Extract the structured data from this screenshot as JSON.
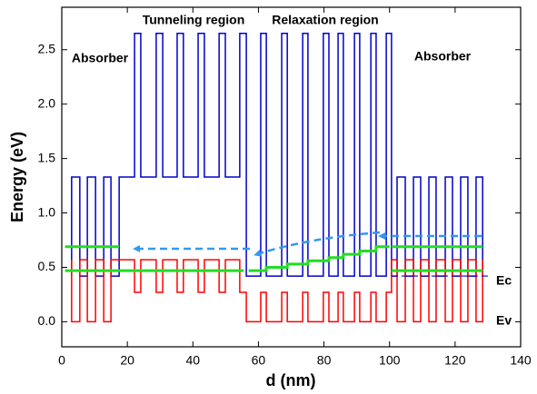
{
  "chart_data": {
    "type": "line",
    "xlabel": "d (nm)",
    "ylabel": "Energy (eV)",
    "xlim": [
      0,
      140
    ],
    "xticks": [
      0,
      20,
      40,
      60,
      80,
      100,
      120,
      140
    ],
    "ylim": [
      -0.23,
      2.89
    ],
    "yticks": [
      {
        "value": 0,
        "label": "0.0"
      },
      0.5,
      {
        "value": 1,
        "label": "1.0"
      },
      1.5,
      {
        "value": 2,
        "label": "2.0"
      },
      2.5
    ],
    "annotations": [
      "Tunneling region",
      "Relaxation region",
      "Absorber",
      "Absorber"
    ],
    "series": [
      {
        "name": "Ec",
        "color": "#0000cc",
        "linewidth": 1.5,
        "x": [
          3,
          3,
          5.5,
          5.5,
          7.8,
          7.8,
          10.3,
          10.3,
          12.8,
          12.8,
          15,
          15,
          17.5,
          17.5,
          22.2,
          22.2,
          24.1,
          24.1,
          28.8,
          28.8,
          30.8,
          30.8,
          35.2,
          35.2,
          37.1,
          37.1,
          41.6,
          41.6,
          43.5,
          43.5,
          48,
          48,
          49.9,
          49.9,
          54.3,
          54.3,
          56.3,
          56.3,
          60.7,
          60.7,
          62.4,
          62.4,
          67.1,
          67.1,
          68.8,
          68.8,
          73.5,
          73.5,
          75.1,
          75.1,
          79.8,
          79.8,
          81.5,
          81.5,
          84.3,
          84.3,
          85.9,
          85.9,
          89.3,
          89.3,
          90.9,
          90.9,
          94.3,
          94.3,
          95.9,
          95.9,
          99,
          99,
          100.6,
          100.6,
          102.3,
          102.3,
          104.8,
          104.8,
          107.3,
          107.3,
          109.5,
          109.5,
          112,
          112,
          114.2,
          114.2,
          117,
          117,
          119.2,
          119.2,
          121.7,
          121.7,
          123.9,
          123.9,
          126.4,
          126.4,
          128.4,
          128.4
        ],
        "values": [
          0.42,
          1.33,
          1.33,
          0.42,
          0.42,
          1.33,
          1.33,
          0.42,
          0.42,
          1.33,
          1.33,
          0.42,
          0.42,
          1.33,
          1.33,
          2.65,
          2.65,
          1.33,
          1.33,
          2.65,
          2.65,
          1.33,
          1.33,
          2.65,
          2.65,
          1.33,
          1.33,
          2.65,
          2.65,
          1.33,
          1.33,
          2.65,
          2.65,
          1.33,
          1.33,
          2.65,
          2.65,
          0.42,
          0.42,
          2.65,
          2.65,
          0.42,
          0.42,
          2.65,
          2.65,
          0.42,
          0.42,
          2.65,
          2.65,
          0.42,
          0.42,
          2.65,
          2.65,
          0.42,
          0.42,
          2.65,
          2.65,
          0.42,
          0.42,
          2.65,
          2.65,
          0.42,
          0.42,
          2.65,
          2.65,
          0.42,
          0.42,
          2.65,
          2.65,
          0.42,
          0.42,
          1.33,
          1.33,
          0.42,
          0.42,
          1.33,
          1.33,
          0.42,
          0.42,
          1.33,
          1.33,
          0.42,
          0.42,
          1.33,
          1.33,
          0.42,
          0.42,
          1.33,
          1.33,
          0.42,
          0.42,
          1.33,
          1.33,
          0.42
        ]
      },
      {
        "name": "Ev",
        "color": "#ff0000",
        "linewidth": 1.5,
        "x": [
          3,
          3,
          5.5,
          5.5,
          7.8,
          7.8,
          10.3,
          10.3,
          12.8,
          12.8,
          15,
          15,
          17.5,
          17.5,
          22.2,
          22.2,
          24.1,
          24.1,
          28.8,
          28.8,
          30.8,
          30.8,
          35.2,
          35.2,
          37.1,
          37.1,
          41.6,
          41.6,
          43.5,
          43.5,
          48,
          48,
          49.9,
          49.9,
          54.3,
          54.3,
          56.3,
          56.3,
          60.7,
          60.7,
          62.4,
          62.4,
          67.1,
          67.1,
          68.8,
          68.8,
          73.5,
          73.5,
          75.1,
          75.1,
          79.8,
          79.8,
          81.5,
          81.5,
          84.3,
          84.3,
          85.9,
          85.9,
          89.3,
          89.3,
          90.9,
          90.9,
          94.3,
          94.3,
          95.9,
          95.9,
          99,
          99,
          100.6,
          100.6,
          102.3,
          102.3,
          104.8,
          104.8,
          107.3,
          107.3,
          109.5,
          109.5,
          112,
          112,
          114.2,
          114.2,
          117,
          117,
          119.2,
          119.2,
          121.7,
          121.7,
          123.9,
          123.9,
          126.4,
          126.4,
          128.4,
          128.4
        ],
        "values": [
          0.57,
          0,
          0,
          0.57,
          0.57,
          0,
          0,
          0.57,
          0.57,
          0,
          0,
          0.57,
          0.57,
          0.57,
          0.57,
          0.27,
          0.27,
          0.57,
          0.57,
          0.27,
          0.27,
          0.57,
          0.57,
          0.27,
          0.27,
          0.57,
          0.57,
          0.27,
          0.27,
          0.57,
          0.57,
          0.27,
          0.27,
          0.57,
          0.57,
          0.27,
          0.27,
          0,
          0,
          0.27,
          0.27,
          0,
          0,
          0.27,
          0.27,
          0,
          0,
          0.27,
          0.27,
          0,
          0,
          0.27,
          0.27,
          0,
          0,
          0.27,
          0.27,
          0,
          0,
          0.27,
          0.27,
          0,
          0,
          0.27,
          0.27,
          0,
          0,
          0.27,
          0.27,
          0.57,
          0.57,
          0,
          0,
          0.57,
          0.57,
          0,
          0,
          0.57,
          0.57,
          0,
          0,
          0.57,
          0.57,
          0,
          0,
          0.57,
          0.57,
          0,
          0,
          0.57,
          0.57,
          0,
          0,
          0.57
        ]
      },
      {
        "color": "#22dd22",
        "linewidth": 3,
        "x": [
          1,
          17.5,
          null,
          1,
          55.5,
          null,
          57,
          62.4,
          62.4,
          68.8,
          68.8,
          75.1,
          75.1,
          81.5,
          81.5,
          85.9,
          85.9,
          90.9,
          90.9,
          95.9,
          95.9,
          100,
          null,
          100.6,
          128.4,
          null,
          100.6,
          128.4
        ],
        "values": [
          0.69,
          0.69,
          null,
          0.47,
          0.47,
          null,
          0.47,
          0.47,
          0.5,
          0.5,
          0.53,
          0.53,
          0.56,
          0.56,
          0.59,
          0.59,
          0.62,
          0.62,
          0.65,
          0.65,
          0.69,
          0.69,
          null,
          0.69,
          0.69,
          null,
          0.47,
          0.47
        ]
      },
      {
        "color": "#0000cc",
        "linewidth": 1.2,
        "dashed": true,
        "x": [
          100.6,
          130.5
        ],
        "values": [
          0.42,
          0.42
        ]
      }
    ]
  }
}
